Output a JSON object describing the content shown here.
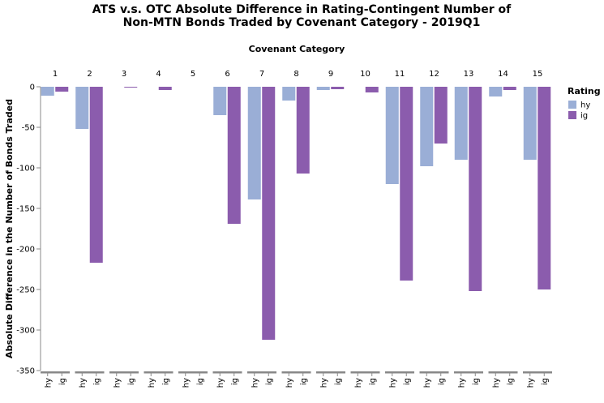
{
  "chart_data": {
    "type": "bar",
    "title": [
      "ATS v.s. OTC Absolute Difference in Rating-Contingent Number of",
      "Non-MTN Bonds Traded by Covenant Category - 2019Q1"
    ],
    "column_title": "Covenant Category",
    "ylabel": "Absolute Difference in the Number of Bonds Traded",
    "ylim": [
      -350,
      0
    ],
    "yticks": [
      0,
      -50,
      -100,
      -150,
      -200,
      -250,
      -300,
      -350
    ],
    "categories": [
      "1",
      "2",
      "3",
      "4",
      "5",
      "6",
      "7",
      "8",
      "9",
      "10",
      "11",
      "12",
      "13",
      "14",
      "15"
    ],
    "sub_categories": [
      "hy",
      "ig"
    ],
    "series": [
      {
        "name": "hy",
        "color": "#9aaed6",
        "values": [
          -11,
          -52,
          0,
          0,
          0,
          -35,
          -139,
          -17,
          -4,
          0,
          -120,
          -98,
          -90,
          -12,
          -90
        ]
      },
      {
        "name": "ig",
        "color": "#8b5cad",
        "values": [
          -6,
          -217,
          -1,
          -4,
          0,
          -169,
          -312,
          -107,
          -3,
          -7,
          -239,
          -70,
          -252,
          -4,
          -250
        ]
      }
    ],
    "legend": {
      "title": "Rating",
      "position": "right"
    },
    "grid": false
  }
}
